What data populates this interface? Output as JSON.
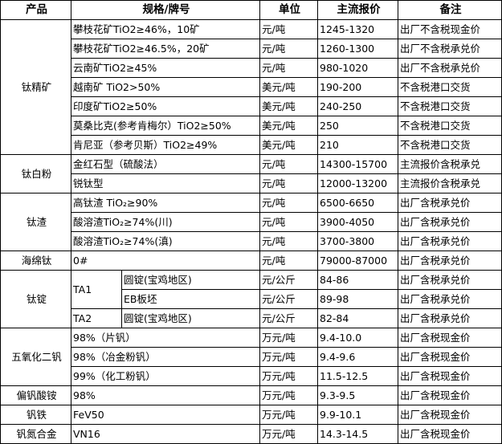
{
  "header": {
    "product": "产品",
    "spec": "规格/牌号",
    "unit": "单位",
    "price": "主流报价",
    "note": "备注"
  },
  "groups": [
    {
      "product": "钛精矿",
      "rows": [
        {
          "spec": "攀枝花矿TiO2≥46%，10矿",
          "unit": "元/吨",
          "price": "1245-1320",
          "note": "出厂不含税现金价"
        },
        {
          "spec": "攀枝花矿TiO2≥46.5%，20矿",
          "unit": "元/吨",
          "price": "1260-1300",
          "note": "出厂不含税承兑价"
        },
        {
          "spec": "云南矿TiO2≥45%",
          "unit": "元/吨",
          "price": "980-1020",
          "note": "出厂不含税承兑价"
        },
        {
          "spec": "越南矿 TiO2>50%",
          "unit": "美元/吨",
          "price": "190-200",
          "note": "不含税港口交货"
        },
        {
          "spec": "印度矿TiO2≥50%",
          "unit": "美元/吨",
          "price": "240-250",
          "note": "不含税港口交货"
        },
        {
          "spec": "莫桑比克(参考肯梅尔）TiO2≥50%",
          "unit": "美元/吨",
          "price": "250",
          "note": "不含税港口交货"
        },
        {
          "spec": "肯尼亚（参考贝斯）TiO2≥49%",
          "unit": "美元/吨",
          "price": "210",
          "note": "不含税港口交货"
        }
      ]
    },
    {
      "product": "钛白粉",
      "rows": [
        {
          "spec": "金红石型（硫酸法）",
          "unit": "元/吨",
          "price": "14300-15700",
          "note": "主流报价含税承兑"
        },
        {
          "spec": "锐钛型",
          "unit": "元/吨",
          "price": "12000-13200",
          "note": "主流报价含税承兑"
        }
      ]
    },
    {
      "product": "钛渣",
      "rows": [
        {
          "spec": "高钛渣 TiO₂≥90%",
          "unit": "元/吨",
          "price": "6500-6650",
          "note": "出厂含税承兑价"
        },
        {
          "spec": "酸溶渣TiO₂≥74%(川)",
          "unit": "元/吨",
          "price": "3900-4050",
          "note": "出厂含税承兑价"
        },
        {
          "spec": "酸溶渣TiO₂≥74%(滇)",
          "unit": "元/吨",
          "price": "3700-3800",
          "note": "出厂含税承兑价"
        }
      ]
    },
    {
      "product": "海绵钛",
      "rows": [
        {
          "spec": "0#",
          "unit": "元/吨",
          "price": "79000-87000",
          "note": "出厂含税承兑价"
        }
      ]
    },
    {
      "product": "钛锭",
      "subgroups": [
        {
          "grade": "TA1",
          "rows": [
            {
              "spec": "圆锭(宝鸡地区)",
              "unit": "元/公斤",
              "price": "84-86",
              "note": "出厂含税承兑价"
            },
            {
              "spec": "EB板坯",
              "unit": "元/公斤",
              "price": "89-98",
              "note": "出厂含税承兑价"
            }
          ]
        },
        {
          "grade": "TA2",
          "rows": [
            {
              "spec": "圆锭(宝鸡地区)",
              "unit": "元/公斤",
              "price": "82-84",
              "note": "出厂含税承兑价"
            }
          ]
        }
      ]
    },
    {
      "product": "五氧化二钒",
      "rows": [
        {
          "spec": "98%（片钒）",
          "unit": "万元/吨",
          "price": "9.4-10.0",
          "note": "出厂含税现金价"
        },
        {
          "spec": "98%（冶金粉钒）",
          "unit": "万元/吨",
          "price": "9.4-9.6",
          "note": "出厂含税现金价"
        },
        {
          "spec": "99%（化工粉钒）",
          "unit": "万元/吨",
          "price": "11.5-12.5",
          "note": "出厂含税现金价"
        }
      ]
    },
    {
      "product": "偏钒酸铵",
      "rows": [
        {
          "spec": "98%",
          "unit": "万元/吨",
          "price": "9.3-9.5",
          "note": "出厂含税现金价"
        }
      ]
    },
    {
      "product": "钒铁",
      "rows": [
        {
          "spec": "FeV50",
          "unit": "万元/吨",
          "price": "9.9-10.1",
          "note": "出厂含税现金价"
        }
      ]
    },
    {
      "product": "钒氮合金",
      "rows": [
        {
          "spec": "VN16",
          "unit": "万元/吨",
          "price": "14.3-14.5",
          "note": "出厂含税现金价"
        }
      ]
    }
  ]
}
